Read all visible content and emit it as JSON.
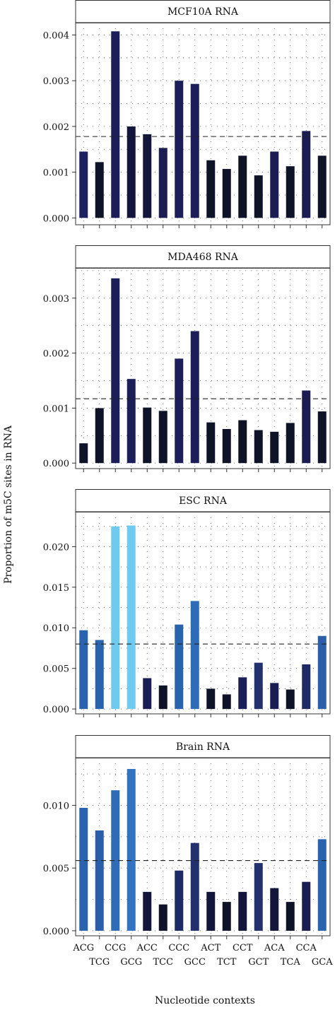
{
  "figure": {
    "ylabel": "Proportion of m5C sites in RNA",
    "xlabel": "Nucleotide contexts",
    "colors": {
      "text": "#111111",
      "frame": "#333333"
    }
  },
  "chart_data": [
    {
      "type": "bar",
      "title": "MCF10A RNA",
      "categories": [
        "ACG",
        "TCG",
        "CCG",
        "GCG",
        "ACC",
        "TCC",
        "CCC",
        "GCC",
        "ACT",
        "TCT",
        "CCT",
        "GCT",
        "ACA",
        "TCA",
        "CCA",
        "GCA"
      ],
      "values": [
        0.00145,
        0.00122,
        0.00408,
        0.002,
        0.00183,
        0.00153,
        0.003,
        0.00293,
        0.00126,
        0.00107,
        0.00136,
        0.00093,
        0.00145,
        0.00113,
        0.0019,
        0.00136
      ],
      "colors": [
        "#1e2160",
        "#0f1328",
        "#1c1e5a",
        "#13163a",
        "#13163a",
        "#1a1c52",
        "#1c1e5a",
        "#1c1e5a",
        "#0f1328",
        "#0f1328",
        "#0f1328",
        "#0f1328",
        "#1a1c52",
        "#0f1328",
        "#1a1c52",
        "#0f1328"
      ],
      "mean_line": 0.00178,
      "ylim": [
        -0.00015,
        0.00427
      ],
      "yticks": [
        0,
        0.001,
        0.002,
        0.003,
        0.004
      ],
      "ytick_labels": [
        "0.000",
        "0.001",
        "0.002",
        "0.003",
        "0.004"
      ],
      "grid": true
    },
    {
      "type": "bar",
      "title": "MDA468 RNA",
      "categories": [
        "ACG",
        "TCG",
        "CCG",
        "GCG",
        "ACC",
        "TCC",
        "CCC",
        "GCC",
        "ACT",
        "TCT",
        "CCT",
        "GCT",
        "ACA",
        "TCA",
        "CCA",
        "GCA"
      ],
      "values": [
        0.00036,
        0.001,
        0.00336,
        0.00153,
        0.00101,
        0.00095,
        0.0019,
        0.0024,
        0.00074,
        0.00062,
        0.00078,
        0.0006,
        0.00057,
        0.00073,
        0.00132,
        0.00094
      ],
      "colors": [
        "#0f1328",
        "#0f1328",
        "#1c1e5a",
        "#1c1e5a",
        "#0f1328",
        "#0f1328",
        "#1c1e5a",
        "#1c1e5a",
        "#0f1328",
        "#0f1328",
        "#0f1328",
        "#0f1328",
        "#0f1328",
        "#0f1328",
        "#1a1c52",
        "#0f1328"
      ],
      "mean_line": 0.00117,
      "ylim": [
        -0.0001,
        0.00355
      ],
      "yticks": [
        0,
        0.001,
        0.002,
        0.003
      ],
      "ytick_labels": [
        "0.000",
        "0.001",
        "0.002",
        "0.003"
      ],
      "grid": true
    },
    {
      "type": "bar",
      "title": "ESC RNA",
      "categories": [
        "ACG",
        "TCG",
        "CCG",
        "GCG",
        "ACC",
        "TCC",
        "CCC",
        "GCC",
        "ACT",
        "TCT",
        "CCT",
        "GCT",
        "ACA",
        "TCA",
        "CCA",
        "GCA"
      ],
      "values": [
        0.0097,
        0.0085,
        0.0225,
        0.0226,
        0.0038,
        0.0029,
        0.0104,
        0.0133,
        0.0025,
        0.0018,
        0.0039,
        0.0057,
        0.0032,
        0.0024,
        0.0055,
        0.009
      ],
      "colors": [
        "#2a63ad",
        "#2a63ad",
        "#6ecbef",
        "#6ecbef",
        "#1a1d52",
        "#0f1328",
        "#2a63ad",
        "#2e6cb8",
        "#0f1328",
        "#0f1328",
        "#1c1e5a",
        "#22306e",
        "#1a1d52",
        "#0f1328",
        "#1e2a66",
        "#2a5ea8"
      ],
      "mean_line": 0.008,
      "ylim": [
        -0.0006,
        0.0243
      ],
      "yticks": [
        0,
        0.005,
        0.01,
        0.015,
        0.02
      ],
      "ytick_labels": [
        "0.000",
        "0.005",
        "0.010",
        "0.015",
        "0.020"
      ],
      "grid": true
    },
    {
      "type": "bar",
      "title": "Brain RNA",
      "categories": [
        "ACG",
        "TCG",
        "CCG",
        "GCG",
        "ACC",
        "TCC",
        "CCC",
        "GCC",
        "ACT",
        "TCT",
        "CCT",
        "GCT",
        "ACA",
        "TCA",
        "CCA",
        "GCA"
      ],
      "values": [
        0.0098,
        0.008,
        0.0112,
        0.0129,
        0.0031,
        0.0021,
        0.0048,
        0.007,
        0.0031,
        0.0023,
        0.0031,
        0.0054,
        0.0034,
        0.0023,
        0.0039,
        0.0073
      ],
      "colors": [
        "#2a63ad",
        "#2a5ea8",
        "#2e6cb8",
        "#3272c0",
        "#13163a",
        "#0f1328",
        "#1e2a66",
        "#22306e",
        "#13163a",
        "#0f1328",
        "#13163a",
        "#22306e",
        "#13163a",
        "#0f1328",
        "#1a1d52",
        "#2a63ad"
      ],
      "mean_line": 0.0056,
      "ylim": [
        -0.0004,
        0.0138
      ],
      "yticks": [
        0,
        0.005,
        0.01
      ],
      "ytick_labels": [
        "0.000",
        "0.005",
        "0.010"
      ],
      "grid": true
    }
  ],
  "x_tick_labels": [
    "ACG",
    "TCG",
    "CCG",
    "GCG",
    "ACC",
    "TCC",
    "CCC",
    "GCC",
    "ACT",
    "TCT",
    "CCT",
    "GCT",
    "ACA",
    "TCA",
    "CCA",
    "GCA"
  ]
}
